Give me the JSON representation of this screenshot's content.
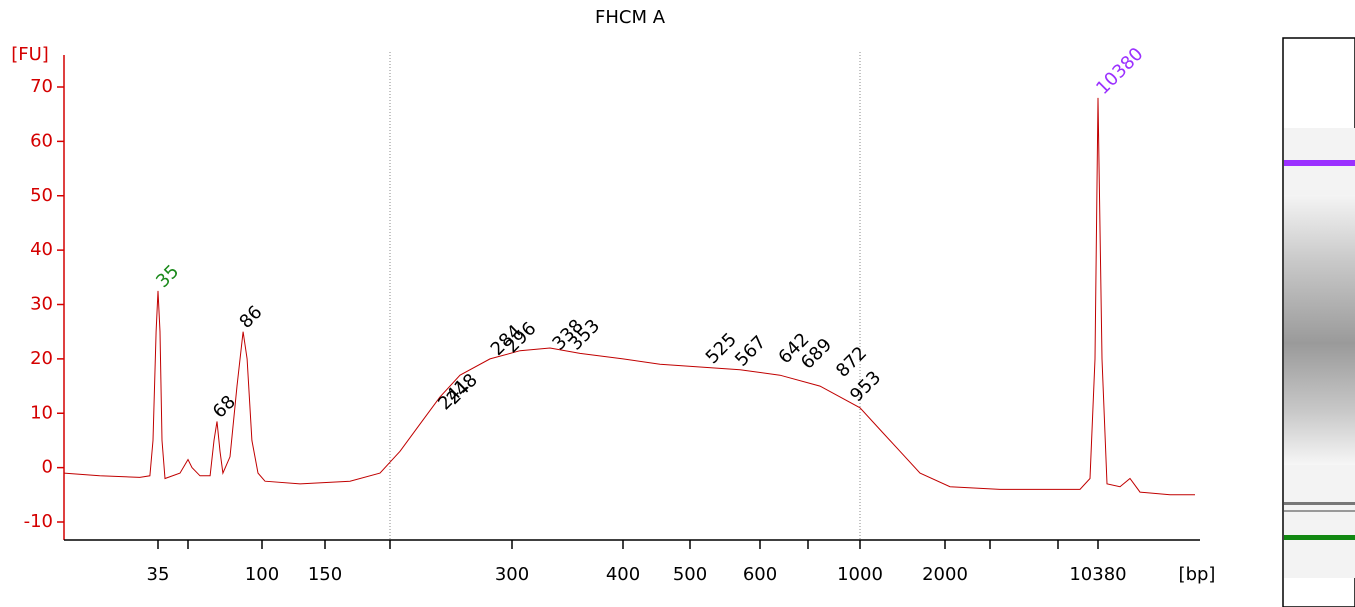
{
  "chart_data": {
    "type": "line",
    "title": "FHCM A",
    "y_label": "[FU]",
    "x_label": "[bp]",
    "ylim": [
      -13,
      76
    ],
    "yticks": [
      -10,
      0,
      10,
      20,
      30,
      40,
      50,
      60,
      70
    ],
    "xlim": [
      20,
      17000
    ],
    "xticks": [
      35,
      100,
      150,
      300,
      400,
      500,
      600,
      1000,
      2000,
      10380
    ],
    "xticks_minor": [
      50,
      200,
      700,
      3000,
      7000
    ],
    "region": [
      200,
      1000
    ],
    "series": [
      {
        "color": "#c00000",
        "x": [
          20,
          25.7,
          32.1,
          33.7,
          34.2,
          34.7,
          35,
          36,
          37,
          38.5,
          46,
          50,
          52.7,
          58.1,
          64.9,
          67.6,
          69.6,
          71.6,
          73.6,
          78.4,
          83.1,
          87.2,
          89.9,
          93.2,
          97.3,
          102.4,
          130.2,
          169.2,
          192.3,
          200,
          208.2,
          224.6,
          241,
          257.4,
          282,
          307.2,
          334.2,
          361.3,
          400,
          455.2,
          514.3,
          571.4,
          641.7,
          769.2,
          1000,
          1235,
          1471,
          1706,
          2111,
          3588,
          6529,
          8859,
          9704,
          10127,
          10380,
          10640,
          10964,
          11808,
          12457,
          13106,
          15053,
          16676
        ],
        "values": [
          -1,
          -1.5,
          -1.8,
          -1.5,
          5,
          25,
          32.5,
          25,
          5,
          -2,
          -1,
          1.5,
          0,
          -1.5,
          -1.5,
          5,
          8.5,
          3,
          -1,
          2,
          15,
          25,
          20,
          5,
          -1,
          -2.5,
          -3,
          -2.5,
          -1,
          1,
          3,
          8,
          13,
          17,
          20,
          21.5,
          22,
          21,
          20,
          19,
          18.5,
          18,
          17,
          15,
          11,
          7,
          3,
          -1,
          -3.5,
          -4,
          -4,
          -4,
          -2,
          20,
          68,
          20,
          -3,
          -3.5,
          -2,
          -4.5,
          -5,
          -5
        ]
      }
    ],
    "peaks": {
      "x": [
        35,
        68,
        86,
        241,
        248,
        284,
        296,
        338,
        353,
        525,
        567,
        642,
        689,
        872,
        953,
        10380
      ],
      "y": [
        32.5,
        8.5,
        25,
        10,
        11,
        20,
        20.5,
        21,
        21,
        18.5,
        18,
        18.5,
        17.5,
        16,
        11.5,
        68
      ],
      "colors": [
        "#1a8a1a",
        "#000",
        "#000",
        "#000",
        "#000",
        "#000",
        "#000",
        "#000",
        "#000",
        "#000",
        "#000",
        "#000",
        "#000",
        "#000",
        "#000",
        "#9b30ff"
      ]
    }
  }
}
